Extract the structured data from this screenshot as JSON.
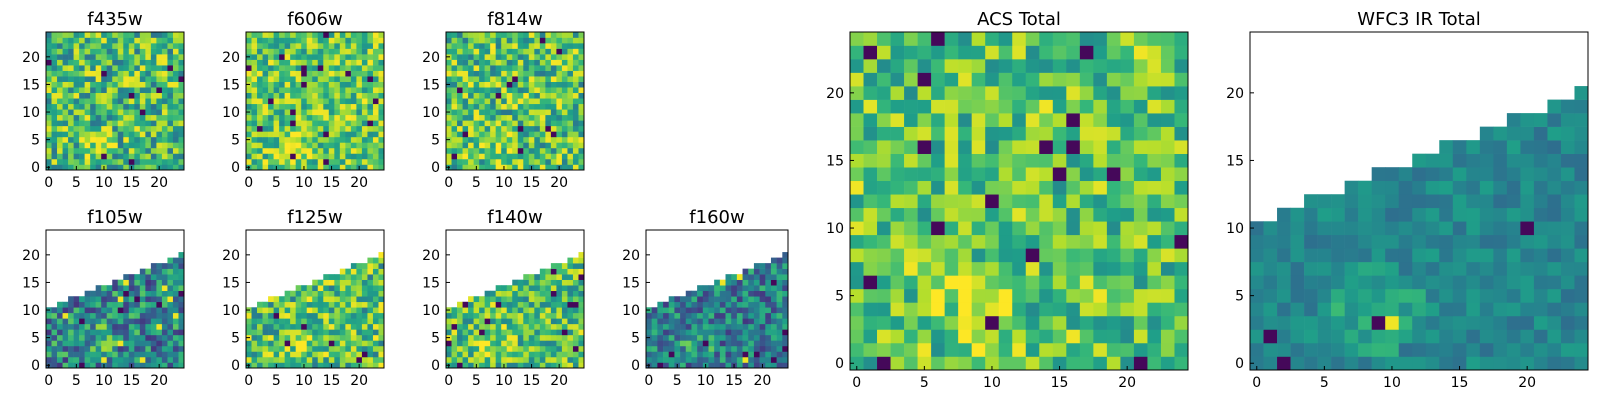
{
  "chart_data": [
    {
      "type": "heatmap",
      "title": "f435w",
      "xticks": [
        "0",
        "5",
        "10",
        "15",
        "20"
      ],
      "yticks": [
        "0",
        "5",
        "10",
        "15",
        "20"
      ],
      "xlim": [
        0,
        25
      ],
      "ylim": [
        0,
        25
      ],
      "grid": false,
      "colormap": "viridis",
      "shape": "full",
      "base": 0.68,
      "var": 0.3,
      "seed": 11
    },
    {
      "type": "heatmap",
      "title": "f606w",
      "xticks": [
        "0",
        "5",
        "10",
        "15",
        "20"
      ],
      "yticks": [
        "0",
        "5",
        "10",
        "15",
        "20"
      ],
      "xlim": [
        0,
        25
      ],
      "ylim": [
        0,
        25
      ],
      "grid": false,
      "colormap": "viridis",
      "shape": "full",
      "base": 0.74,
      "var": 0.26,
      "seed": 23
    },
    {
      "type": "heatmap",
      "title": "f814w",
      "xticks": [
        "0",
        "5",
        "10",
        "15",
        "20"
      ],
      "yticks": [
        "0",
        "5",
        "10",
        "15",
        "20"
      ],
      "xlim": [
        0,
        25
      ],
      "ylim": [
        0,
        25
      ],
      "grid": false,
      "colormap": "viridis",
      "shape": "full",
      "base": 0.7,
      "var": 0.3,
      "seed": 37
    },
    {
      "type": "heatmap",
      "title": "f105w",
      "xticks": [
        "0",
        "5",
        "10",
        "15",
        "20"
      ],
      "yticks": [
        "0",
        "5",
        "10",
        "15",
        "20"
      ],
      "xlim": [
        0,
        25
      ],
      "ylim": [
        0,
        25
      ],
      "grid": false,
      "colormap": "viridis",
      "shape": "wedge",
      "base": 0.45,
      "var": 0.3,
      "seed": 41
    },
    {
      "type": "heatmap",
      "title": "f125w",
      "xticks": [
        "0",
        "5",
        "10",
        "15",
        "20"
      ],
      "yticks": [
        "0",
        "5",
        "10",
        "15",
        "20"
      ],
      "xlim": [
        0,
        25
      ],
      "ylim": [
        0,
        25
      ],
      "grid": false,
      "colormap": "viridis",
      "shape": "wedge",
      "base": 0.7,
      "var": 0.3,
      "seed": 53
    },
    {
      "type": "heatmap",
      "title": "f140w",
      "xticks": [
        "0",
        "5",
        "10",
        "15",
        "20"
      ],
      "yticks": [
        "0",
        "5",
        "10",
        "15",
        "20"
      ],
      "xlim": [
        0,
        25
      ],
      "ylim": [
        0,
        25
      ],
      "grid": false,
      "colormap": "viridis",
      "shape": "wedge",
      "base": 0.7,
      "var": 0.26,
      "seed": 67
    },
    {
      "type": "heatmap",
      "title": "f160w",
      "xticks": [
        "0",
        "5",
        "10",
        "15",
        "20"
      ],
      "yticks": [
        "0",
        "5",
        "10",
        "15",
        "20"
      ],
      "xlim": [
        0,
        25
      ],
      "ylim": [
        0,
        25
      ],
      "grid": false,
      "colormap": "viridis",
      "shape": "wedge",
      "base": 0.42,
      "var": 0.26,
      "seed": 79
    },
    {
      "type": "heatmap",
      "title": "ACS Total",
      "xticks": [
        "0",
        "5",
        "10",
        "15",
        "20"
      ],
      "yticks": [
        "0",
        "5",
        "10",
        "15",
        "20"
      ],
      "xlim": [
        0,
        25
      ],
      "ylim": [
        0,
        25
      ],
      "grid": false,
      "colormap": "viridis",
      "shape": "full",
      "base": 0.72,
      "var": 0.24,
      "seed": 91
    },
    {
      "type": "heatmap",
      "title": "WFC3 IR Total",
      "xticks": [
        "0",
        "5",
        "10",
        "15",
        "20"
      ],
      "yticks": [
        "0",
        "5",
        "10",
        "15",
        "20"
      ],
      "xlim": [
        0,
        25
      ],
      "ylim": [
        0,
        25
      ],
      "grid": false,
      "colormap": "viridis",
      "shape": "wedge",
      "base": 0.46,
      "var": 0.1,
      "seed": 103
    }
  ]
}
